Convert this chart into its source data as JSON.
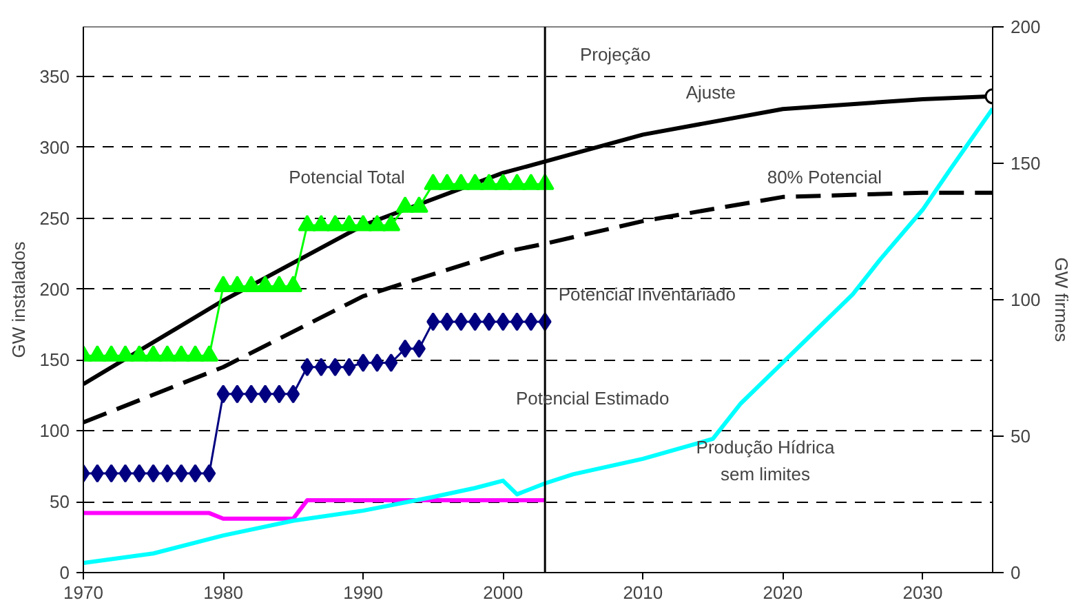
{
  "chart_data": {
    "type": "line",
    "ylabel": "GW instalados",
    "y2label": "GW firmes",
    "xlim": [
      1970,
      2035
    ],
    "xticks": [
      1970,
      1980,
      1990,
      2000,
      2010,
      2020,
      2030
    ],
    "ylim": [
      0,
      385
    ],
    "yticks": [
      0,
      50,
      100,
      150,
      200,
      250,
      300,
      350
    ],
    "y2lim": [
      0,
      200
    ],
    "y2ticks": [
      0,
      50,
      100,
      150,
      200
    ],
    "grid": "y",
    "series": [
      {
        "color": "#000000",
        "line_style": "solid",
        "marker": "none",
        "x": [
          1970,
          1980,
          1990,
          2000,
          2003,
          2010,
          2020,
          2030,
          2035
        ],
        "values": [
          133,
          192,
          245,
          282,
          290,
          309,
          327,
          334,
          336
        ]
      },
      {
        "color": "#000000",
        "line_style": "dashed",
        "marker": "none",
        "x": [
          1970,
          1980,
          1990,
          2000,
          2003,
          2010,
          2020,
          2030,
          2035
        ],
        "values": [
          106,
          145,
          195,
          226,
          232,
          248,
          265,
          268,
          268
        ]
      },
      {
        "color": "#00ff00",
        "line_style": "solid",
        "marker": "triangle",
        "x": [
          1970,
          1971,
          1972,
          1973,
          1974,
          1975,
          1976,
          1977,
          1978,
          1979,
          1980,
          1981,
          1982,
          1983,
          1984,
          1985,
          1986,
          1987,
          1988,
          1989,
          1990,
          1991,
          1992,
          1993,
          1994,
          1995,
          1996,
          1997,
          1998,
          1999,
          2000,
          2001,
          2002,
          2003
        ],
        "values": [
          153,
          153,
          153,
          153,
          153,
          153,
          153,
          153,
          153,
          153,
          202,
          202,
          202,
          202,
          202,
          202,
          245,
          245,
          245,
          245,
          245,
          245,
          245,
          258,
          258,
          274,
          274,
          274,
          274,
          274,
          274,
          274,
          274,
          274
        ]
      },
      {
        "color": "#000080",
        "line_style": "solid",
        "marker": "diamond",
        "x": [
          1970,
          1971,
          1972,
          1973,
          1974,
          1975,
          1976,
          1977,
          1978,
          1979,
          1980,
          1981,
          1982,
          1983,
          1984,
          1985,
          1986,
          1987,
          1988,
          1989,
          1990,
          1991,
          1992,
          1993,
          1994,
          1995,
          1996,
          1997,
          1998,
          1999,
          2000,
          2001,
          2002,
          2003
        ],
        "values": [
          70,
          70,
          70,
          70,
          70,
          70,
          70,
          70,
          70,
          70,
          126,
          126,
          126,
          126,
          126,
          126,
          145,
          145,
          145,
          145,
          148,
          148,
          148,
          158,
          158,
          177,
          177,
          177,
          177,
          177,
          177,
          177,
          177,
          177
        ]
      },
      {
        "color": "#ff00ff",
        "line_style": "solid",
        "marker": "none",
        "x": [
          1970,
          1971,
          1972,
          1973,
          1974,
          1975,
          1976,
          1977,
          1978,
          1979,
          1980,
          1981,
          1982,
          1983,
          1984,
          1985,
          1986,
          1987,
          1988,
          1989,
          1990,
          1991,
          1992,
          1993,
          1994,
          1995,
          1996,
          1997,
          1998,
          1999,
          2000,
          2001,
          2002,
          2003
        ],
        "values": [
          42,
          42,
          42,
          42,
          42,
          42,
          42,
          42,
          42,
          42,
          38,
          38,
          38,
          38,
          38,
          38,
          51,
          51,
          51,
          51,
          51,
          51,
          51,
          51,
          51,
          51,
          51,
          51,
          51,
          51,
          51,
          51,
          51,
          51
        ]
      },
      {
        "color": "#00ffff",
        "line_style": "solid",
        "marker": "none",
        "axis": "y2",
        "x": [
          1970,
          1975,
          1980,
          1985,
          1990,
          1995,
          1998,
          2000,
          2001,
          2003,
          2005,
          2010,
          2015,
          2017,
          2020,
          2022,
          2025,
          2027,
          2030,
          2032,
          2035
        ],
        "values": [
          3.5,
          7,
          13.6,
          19,
          22.7,
          27.7,
          31,
          33.7,
          28.7,
          32.7,
          36,
          41.7,
          49,
          62,
          77,
          87,
          102,
          115,
          133,
          148,
          170
        ]
      },
      {
        "type": "scatter",
        "color": "#000000",
        "marker": "circle",
        "x": [
          2035
        ],
        "values": [
          336
        ]
      }
    ],
    "ref_lines": [
      {
        "axis": "x",
        "value": 2003,
        "color": "#000000"
      }
    ],
    "annotations": [
      "Projeção",
      "Ajuste",
      "Potencial Total",
      "80% Potencial",
      "Potencial Inventariado",
      "Potencial Estimado",
      "Produção Hídrica",
      "sem limites"
    ]
  }
}
